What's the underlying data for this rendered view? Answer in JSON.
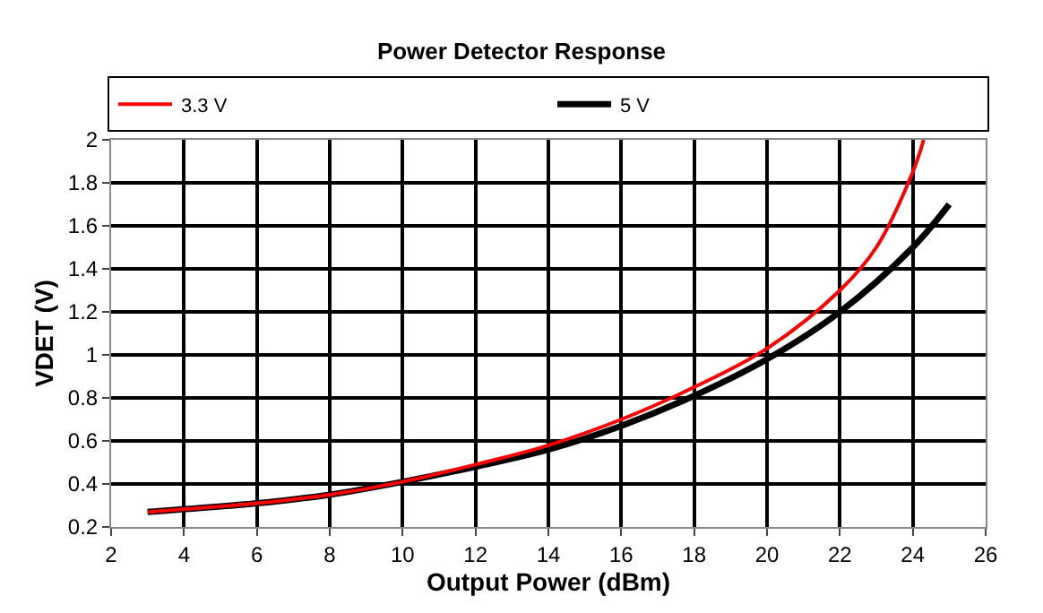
{
  "chart_data": {
    "type": "line",
    "title": "Power Detector Response",
    "xlabel": "Output Power (dBm)",
    "ylabel": "VDET (V)",
    "xlim": [
      2,
      26
    ],
    "xticks": [
      2,
      4,
      6,
      8,
      10,
      12,
      14,
      16,
      18,
      20,
      22,
      24,
      26
    ],
    "ylim": [
      0.2,
      2
    ],
    "yticks": [
      0.2,
      0.4,
      0.6,
      0.8,
      1,
      1.2,
      1.4,
      1.6,
      1.8,
      2
    ],
    "grid": true,
    "legend": "top",
    "marker": "none",
    "line_style": "solid",
    "series": [
      {
        "name": "3.3 V",
        "color": "#ff0000",
        "x": [
          3,
          6,
          8,
          10,
          12,
          14,
          16,
          18,
          20,
          22,
          23,
          24,
          24.3
        ],
        "values": [
          0.27,
          0.31,
          0.35,
          0.41,
          0.49,
          0.58,
          0.7,
          0.85,
          1.03,
          1.3,
          1.5,
          1.85,
          2.0
        ]
      },
      {
        "name": "5 V",
        "color": "#000000",
        "x": [
          3,
          6,
          8,
          10,
          12,
          14,
          16,
          18,
          20,
          22,
          24,
          25
        ],
        "values": [
          0.27,
          0.31,
          0.35,
          0.41,
          0.48,
          0.56,
          0.67,
          0.81,
          0.98,
          1.2,
          1.5,
          1.7
        ]
      }
    ]
  }
}
